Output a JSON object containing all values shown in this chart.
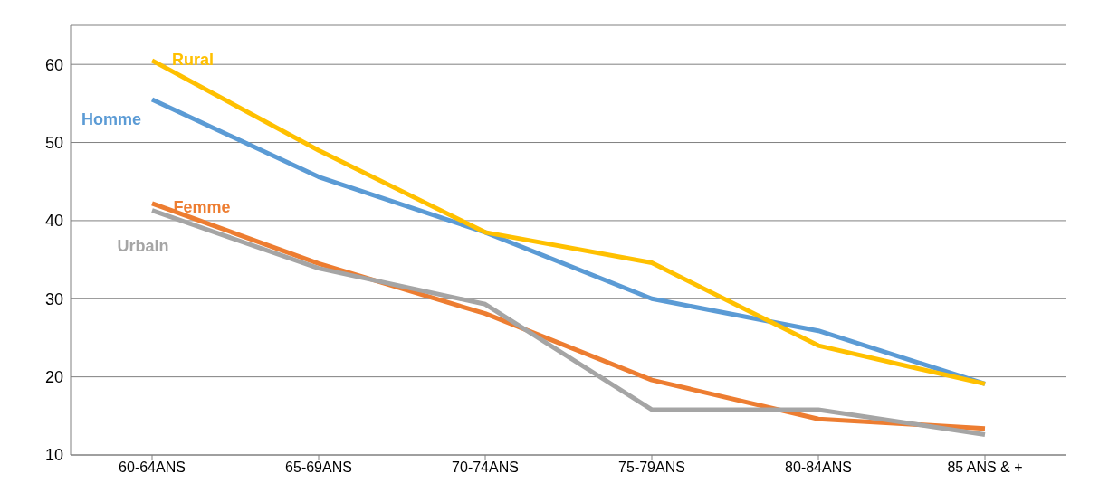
{
  "chart_data": {
    "type": "line",
    "categories": [
      "60-64ANS",
      "65-69ANS",
      "70-74ANS",
      "75-79ANS",
      "80-84ANS",
      "85 ANS & +"
    ],
    "series": [
      {
        "name": "Homme",
        "color": "#5b9bd5",
        "values": [
          55.5,
          45.6,
          38.5,
          30,
          25.9,
          19.1
        ]
      },
      {
        "name": "Femme",
        "color": "#ed7d31",
        "values": [
          42.2,
          34.5,
          28.1,
          19.6,
          14.6,
          13.4
        ]
      },
      {
        "name": "Urbain",
        "color": "#a5a5a5",
        "values": [
          41.3,
          33.9,
          29.3,
          15.8,
          15.8,
          12.6
        ]
      },
      {
        "name": "Rural",
        "color": "#ffc000",
        "values": [
          60.5,
          49,
          38.5,
          34.6,
          24,
          19.1
        ]
      }
    ],
    "ylim": [
      10,
      65
    ],
    "yticks": [
      10,
      20,
      30,
      40,
      50,
      60
    ],
    "grid": "y",
    "marker": "none",
    "line_style": "solid"
  }
}
